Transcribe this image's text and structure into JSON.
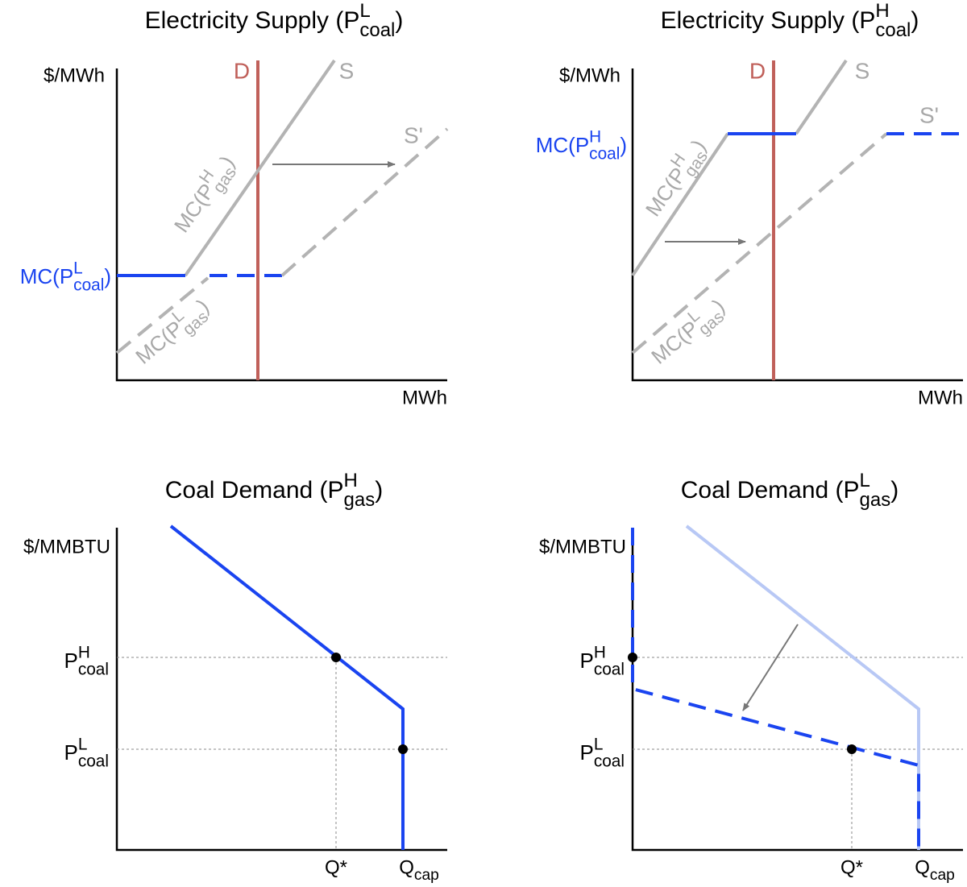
{
  "panels": [
    {
      "title": {
        "base": "Electricity Supply (P",
        "sup": "L",
        "sub": "coal",
        "after": ")"
      },
      "y_label": "$/MWh",
      "x_label": "MWh",
      "demand": "D",
      "supply": "S",
      "supply_shifted": "S'",
      "price_label": {
        "base": "MC(P",
        "sup": "L",
        "sub": "coal",
        "after": ")"
      },
      "curve_labels": [
        {
          "base": "MC(P",
          "sup": "H",
          "sub": "gas",
          "after": ")"
        },
        {
          "base": "MC(P",
          "sup": "L",
          "sub": "gas",
          "after": ")"
        }
      ]
    },
    {
      "title": {
        "base": "Electricity Supply (P",
        "sup": "H",
        "sub": "coal",
        "after": ")"
      },
      "y_label": "$/MWh",
      "x_label": "MWh",
      "demand": "D",
      "supply": "S",
      "supply_shifted": "S'",
      "price_label": {
        "base": "MC(P",
        "sup": "H",
        "sub": "coal",
        "after": ")"
      },
      "curve_labels": [
        {
          "base": "MC(P",
          "sup": "H",
          "sub": "gas",
          "after": ")"
        },
        {
          "base": "MC(P",
          "sup": "L",
          "sub": "gas",
          "after": ")"
        }
      ]
    },
    {
      "title": {
        "base": "Coal Demand (P",
        "sup": "H",
        "sub": "gas",
        "after": ")"
      },
      "y_label": "$/MMBTU",
      "y_ticks": [
        {
          "base": "P",
          "sup": "H",
          "sub": "coal"
        },
        {
          "base": "P",
          "sup": "L",
          "sub": "coal"
        }
      ],
      "x_ticks": [
        {
          "base": "Q*"
        },
        {
          "base": "Q",
          "sub": "cap"
        }
      ]
    },
    {
      "title": {
        "base": "Coal Demand (P",
        "sup": "L",
        "sub": "gas",
        "after": ")"
      },
      "y_label": "$/MMBTU",
      "y_ticks": [
        {
          "base": "P",
          "sup": "H",
          "sub": "coal"
        },
        {
          "base": "P",
          "sup": "L",
          "sub": "coal"
        }
      ],
      "x_ticks": [
        {
          "base": "Q*"
        },
        {
          "base": "Q",
          "sub": "cap"
        }
      ]
    }
  ]
}
